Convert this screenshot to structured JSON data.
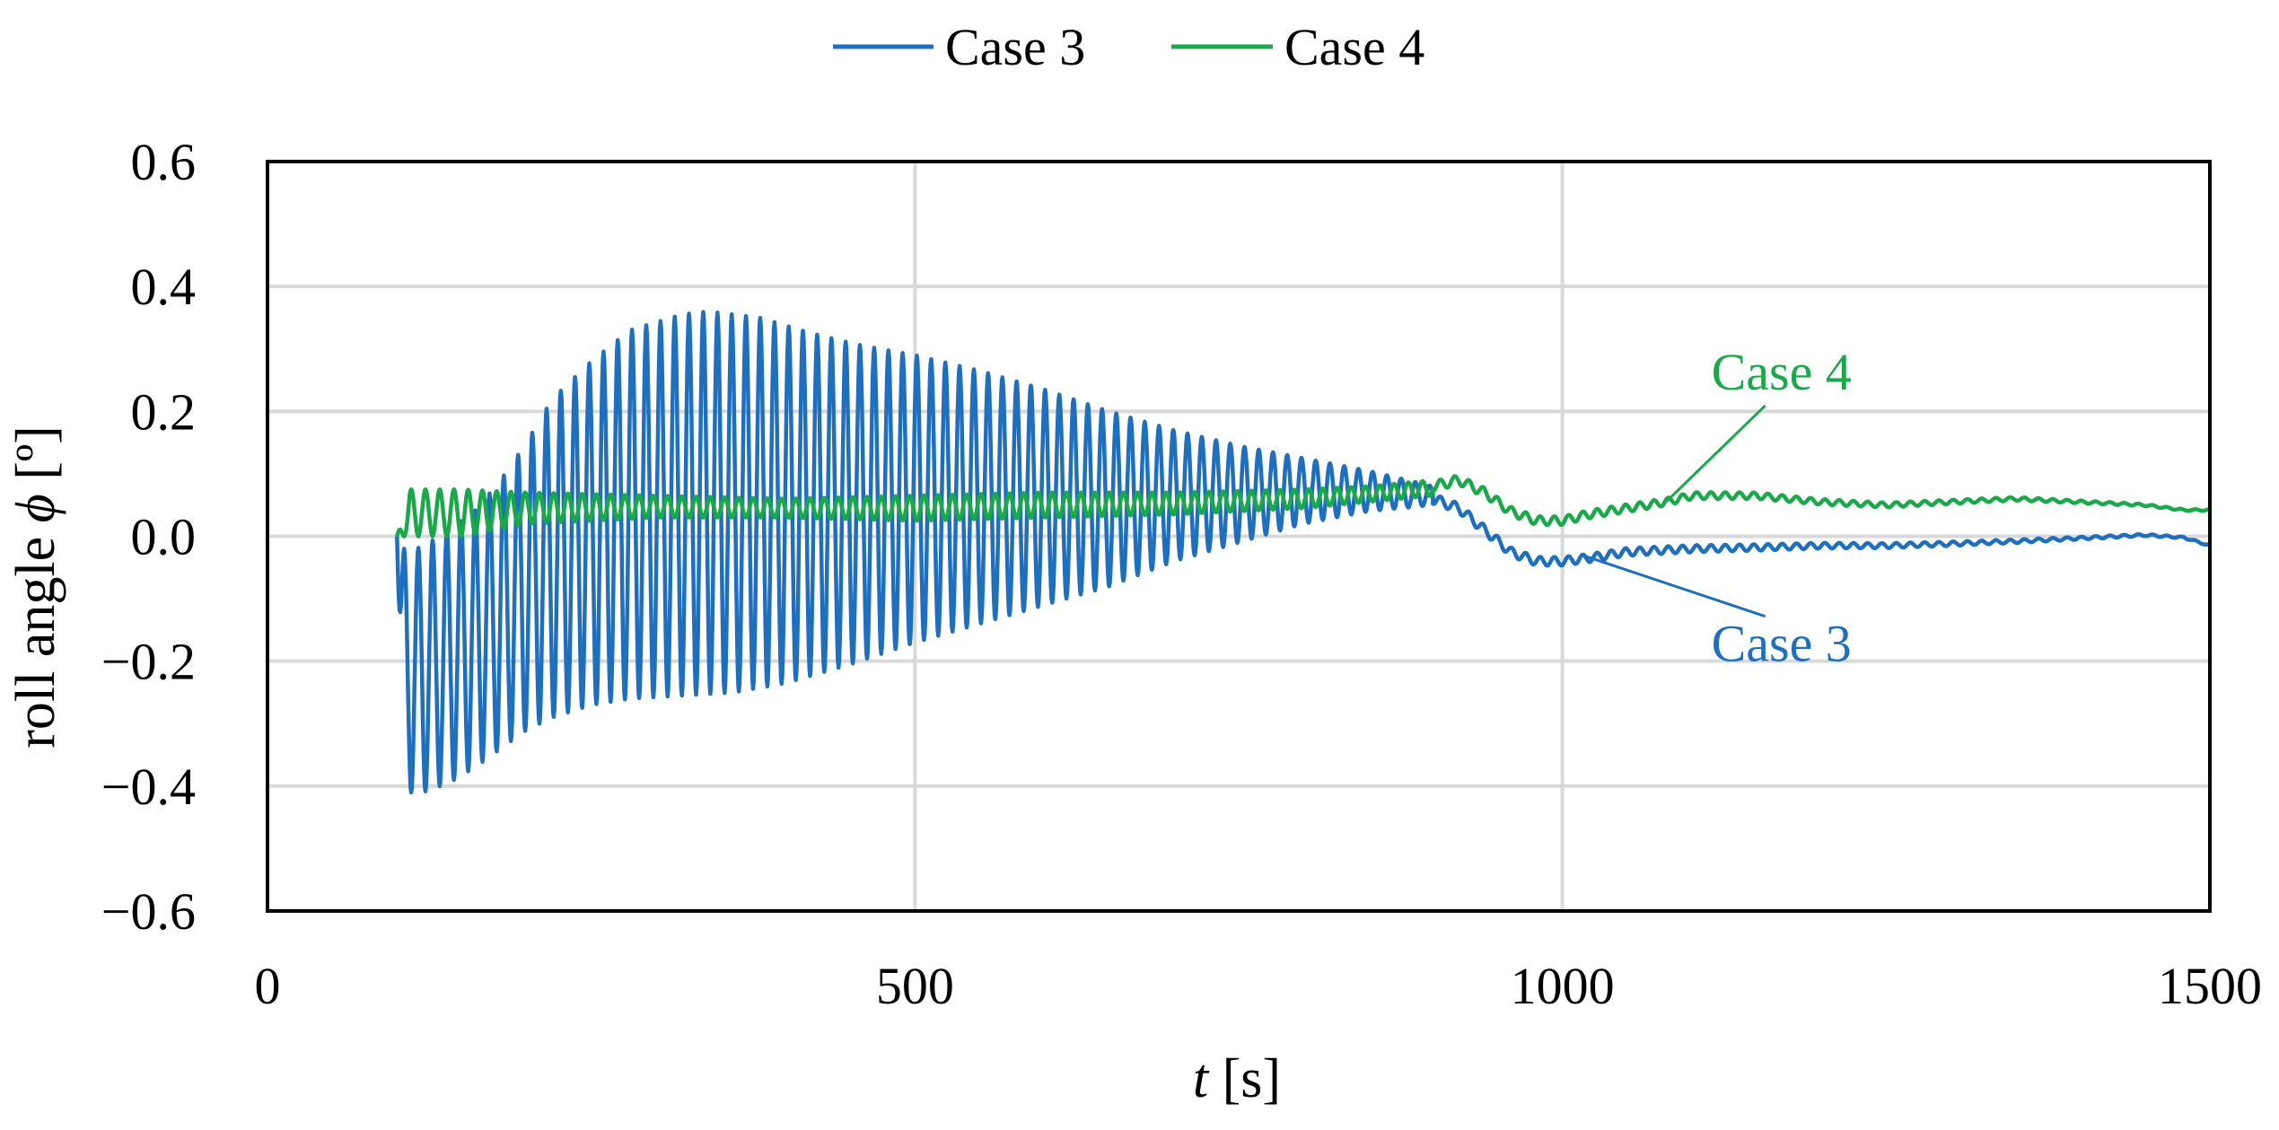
{
  "chart_data": {
    "type": "line",
    "title": "",
    "xlabel_italic": "t",
    "xlabel_unit": " [s]",
    "ylabel_text": "roll angle ",
    "ylabel_symbol": "ϕ",
    "ylabel_unit": " [º]",
    "xlim": [
      0,
      1500
    ],
    "ylim": [
      -0.6,
      0.6
    ],
    "x_ticks": [
      0,
      500,
      1000,
      1500
    ],
    "x_tick_labels": [
      "0",
      "500",
      "1000",
      "1500"
    ],
    "y_ticks": [
      -0.6,
      -0.4,
      -0.2,
      0.0,
      0.2,
      0.4,
      0.6
    ],
    "y_tick_labels": [
      "−0.6",
      "−0.4",
      "−0.2",
      "0.0",
      "0.2",
      "0.4",
      "0.6"
    ],
    "grid": true,
    "legend_position": "top-center",
    "series": [
      {
        "name": "Case 3",
        "color": "#1f6fbf",
        "oscillation_period_s": 11,
        "oscillation_start_s": 100,
        "upper_envelope": [
          [
            100,
            0.0
          ],
          [
            105,
            -0.02
          ],
          [
            115,
            -0.02
          ],
          [
            125,
            -0.01
          ],
          [
            140,
            0.01
          ],
          [
            160,
            0.04
          ],
          [
            180,
            0.09
          ],
          [
            200,
            0.15
          ],
          [
            220,
            0.22
          ],
          [
            250,
            0.28
          ],
          [
            280,
            0.33
          ],
          [
            320,
            0.355
          ],
          [
            340,
            0.36
          ],
          [
            380,
            0.35
          ],
          [
            420,
            0.325
          ],
          [
            460,
            0.305
          ],
          [
            500,
            0.29
          ],
          [
            550,
            0.265
          ],
          [
            600,
            0.235
          ],
          [
            650,
            0.2
          ],
          [
            700,
            0.17
          ],
          [
            750,
            0.145
          ],
          [
            800,
            0.125
          ],
          [
            850,
            0.105
          ],
          [
            900,
            0.08
          ]
        ],
        "lower_envelope": [
          [
            100,
            0.0
          ],
          [
            105,
            -0.41
          ],
          [
            120,
            -0.41
          ],
          [
            140,
            -0.395
          ],
          [
            160,
            -0.37
          ],
          [
            180,
            -0.34
          ],
          [
            200,
            -0.31
          ],
          [
            220,
            -0.29
          ],
          [
            250,
            -0.27
          ],
          [
            280,
            -0.26
          ],
          [
            320,
            -0.255
          ],
          [
            360,
            -0.25
          ],
          [
            400,
            -0.235
          ],
          [
            450,
            -0.205
          ],
          [
            500,
            -0.17
          ],
          [
            550,
            -0.14
          ],
          [
            600,
            -0.11
          ],
          [
            650,
            -0.08
          ],
          [
            700,
            -0.04
          ],
          [
            750,
            -0.01
          ],
          [
            800,
            0.02
          ],
          [
            850,
            0.04
          ],
          [
            900,
            0.05
          ]
        ],
        "points": [
          [
            900,
            0.06
          ],
          [
            920,
            0.045
          ],
          [
            940,
            0.01
          ],
          [
            960,
            -0.025
          ],
          [
            980,
            -0.04
          ],
          [
            1000,
            -0.04
          ],
          [
            1020,
            -0.035
          ],
          [
            1050,
            -0.025
          ],
          [
            1100,
            -0.02
          ],
          [
            1150,
            -0.018
          ],
          [
            1200,
            -0.015
          ],
          [
            1250,
            -0.015
          ],
          [
            1300,
            -0.012
          ],
          [
            1350,
            -0.008
          ],
          [
            1400,
            -0.003
          ],
          [
            1450,
            0.002
          ],
          [
            1480,
            -0.002
          ],
          [
            1500,
            -0.015
          ]
        ]
      },
      {
        "name": "Case 4",
        "color": "#1aa84a",
        "oscillation_period_s": 11,
        "oscillation_start_s": 100,
        "upper_envelope": [
          [
            100,
            0.0
          ],
          [
            110,
            0.075
          ],
          [
            150,
            0.075
          ],
          [
            200,
            0.07
          ],
          [
            300,
            0.065
          ],
          [
            400,
            0.06
          ],
          [
            500,
            0.065
          ],
          [
            600,
            0.07
          ],
          [
            700,
            0.07
          ],
          [
            800,
            0.075
          ],
          [
            850,
            0.08
          ],
          [
            900,
            0.09
          ]
        ],
        "lower_envelope": [
          [
            100,
            0.0
          ],
          [
            110,
            0.0
          ],
          [
            150,
            0.0
          ],
          [
            200,
            0.02
          ],
          [
            300,
            0.03
          ],
          [
            400,
            0.03
          ],
          [
            500,
            0.025
          ],
          [
            600,
            0.03
          ],
          [
            700,
            0.035
          ],
          [
            800,
            0.045
          ],
          [
            850,
            0.055
          ],
          [
            900,
            0.065
          ]
        ],
        "points": [
          [
            900,
            0.08
          ],
          [
            920,
            0.09
          ],
          [
            940,
            0.07
          ],
          [
            960,
            0.04
          ],
          [
            980,
            0.025
          ],
          [
            1000,
            0.025
          ],
          [
            1020,
            0.035
          ],
          [
            1050,
            0.045
          ],
          [
            1080,
            0.055
          ],
          [
            1100,
            0.065
          ],
          [
            1150,
            0.065
          ],
          [
            1200,
            0.055
          ],
          [
            1250,
            0.05
          ],
          [
            1300,
            0.055
          ],
          [
            1350,
            0.06
          ],
          [
            1400,
            0.055
          ],
          [
            1450,
            0.05
          ],
          [
            1480,
            0.042
          ],
          [
            1500,
            0.042
          ]
        ]
      }
    ],
    "annotations": [
      {
        "text": "Case 4",
        "series": "Case 4",
        "label_at": [
          1115,
          0.235
        ],
        "leader_to": [
          1080,
          0.055
        ]
      },
      {
        "text": "Case 3",
        "series": "Case 3",
        "label_at": [
          1115,
          -0.2
        ],
        "leader_to": [
          1015,
          -0.03
        ]
      }
    ]
  }
}
